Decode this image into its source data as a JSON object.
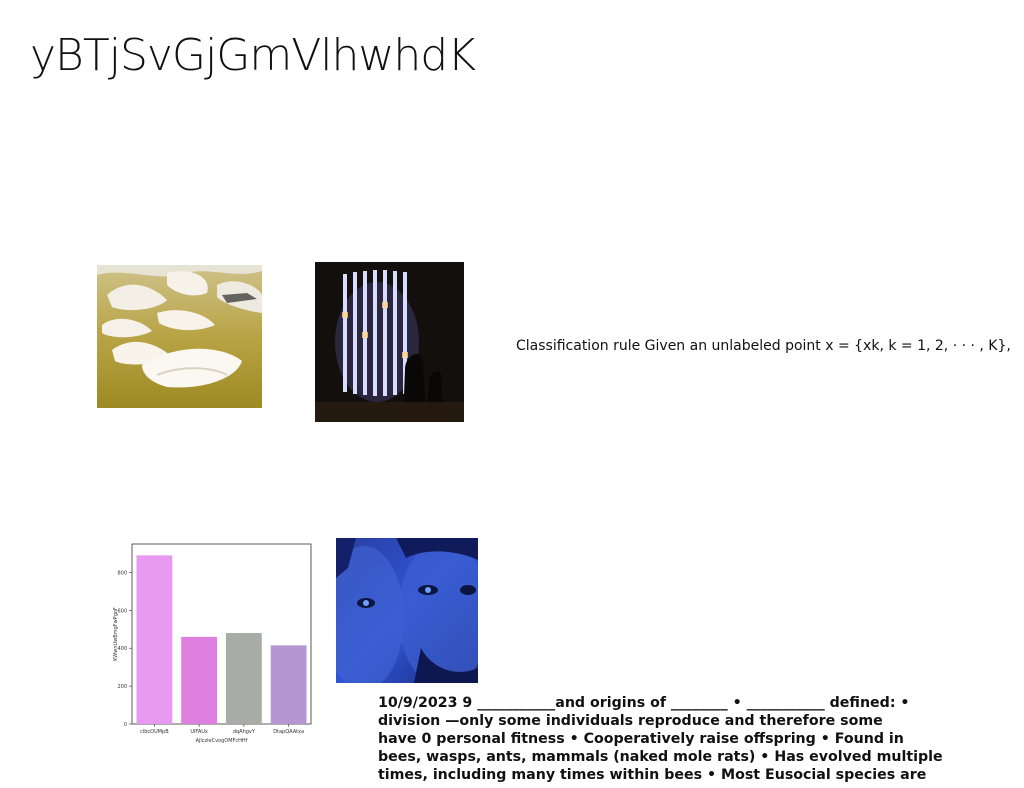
{
  "page": {
    "title": "yBTjSvGjGmVlhwhdK"
  },
  "caption": "Classification rule Given an unlabeled point x = {xk, k = 1, 2, · · · , K},",
  "body_lines": [
    "10/9/2023 9 ___________and origins of ________ • ___________ defined: •",
    "division —only some individuals reproduce and therefore some",
    "have 0 personal fitness • Cooperatively raise offspring • Found in",
    "bees, wasps, ants, mammals (naked mole rats) • Has evolved multiple",
    "times, including many times within bees • Most Eusocial species are"
  ],
  "chart_data": {
    "type": "bar",
    "categories": [
      "clbcOUMpB",
      "UlFAUx",
      "dqAhgvY",
      "DtapQAAtxa"
    ],
    "values": [
      890,
      460,
      480,
      415
    ],
    "colors": [
      "#e899f0",
      "#df7fe0",
      "#a9aba7",
      "#b595d2"
    ],
    "xlabel": "AjlczieCvogOMFcHHf",
    "ylabel": "KWwnUwBmgFwPgoF",
    "ylim": [
      0,
      950
    ],
    "yticks": [
      0,
      200,
      400,
      600,
      800
    ],
    "grid": false
  }
}
